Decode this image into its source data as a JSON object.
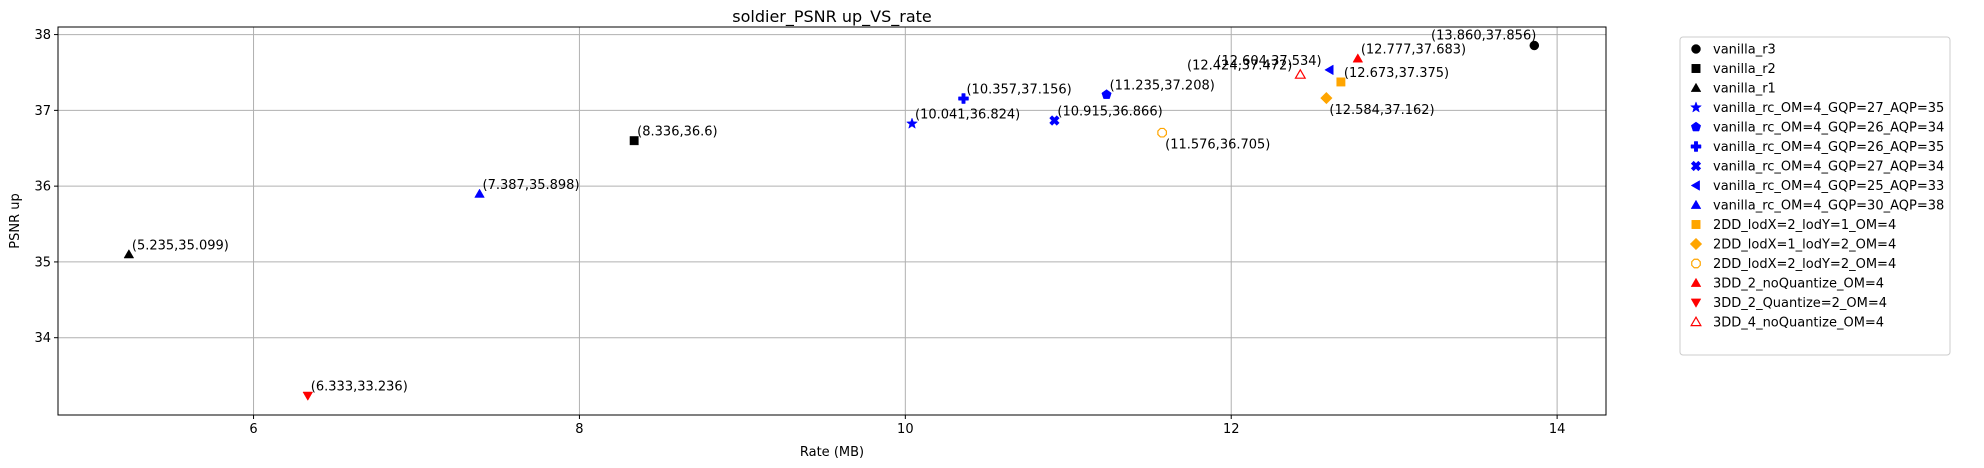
{
  "chart_data": {
    "type": "scatter",
    "title": "soldier_PSNR up_VS_rate",
    "xlabel": "Rate (MB)",
    "ylabel": "PSNR up",
    "xlim": [
      4.8,
      14.3
    ],
    "ylim": [
      32.98,
      38.1
    ],
    "xticks": [
      6,
      8,
      10,
      12,
      14
    ],
    "yticks": [
      34,
      35,
      36,
      37,
      38
    ],
    "grid": true,
    "legend_position": "outside right",
    "series": [
      {
        "name": "vanilla_r3",
        "marker": "circle",
        "color": "#000000",
        "filled": true,
        "points": [
          {
            "x": 13.86,
            "y": 37.856,
            "label": "(13.860,37.856)",
            "label_pos": "above-left"
          }
        ]
      },
      {
        "name": "vanilla_r2",
        "marker": "square",
        "color": "#000000",
        "filled": true,
        "points": [
          {
            "x": 8.336,
            "y": 36.6,
            "label": "(8.336,36.6)",
            "label_pos": "right"
          }
        ]
      },
      {
        "name": "vanilla_r1",
        "marker": "triangle-up",
        "color": "#000000",
        "filled": true,
        "points": [
          {
            "x": 5.235,
            "y": 35.099,
            "label": "(5.235,35.099)",
            "label_pos": "right"
          }
        ]
      },
      {
        "name": "vanilla_rc_OM=4_GQP=27_AQP=35",
        "marker": "star",
        "color": "#0000ff",
        "filled": true,
        "points": [
          {
            "x": 10.041,
            "y": 36.824,
            "label": "(10.041,36.824)",
            "label_pos": "right"
          }
        ]
      },
      {
        "name": "vanilla_rc_OM=4_GQP=26_AQP=34",
        "marker": "pentagon",
        "color": "#0000ff",
        "filled": true,
        "points": [
          {
            "x": 11.235,
            "y": 37.208,
            "label": "(11.235,37.208)",
            "label_pos": "right"
          }
        ]
      },
      {
        "name": "vanilla_rc_OM=4_GQP=26_AQP=35",
        "marker": "plus",
        "color": "#0000ff",
        "filled": true,
        "points": [
          {
            "x": 10.357,
            "y": 37.156,
            "label": "(10.357,37.156)",
            "label_pos": "right"
          }
        ]
      },
      {
        "name": "vanilla_rc_OM=4_GQP=27_AQP=34",
        "marker": "x",
        "color": "#0000ff",
        "filled": true,
        "points": [
          {
            "x": 10.915,
            "y": 36.866,
            "label": "(10.915,36.866)",
            "label_pos": "right"
          }
        ]
      },
      {
        "name": "vanilla_rc_OM=4_GQP=25_AQP=33",
        "marker": "triangle-left",
        "color": "#0000ff",
        "filled": true,
        "points": [
          {
            "x": 12.604,
            "y": 37.534,
            "label": "(12.604,37.534)",
            "label_pos": "left"
          }
        ]
      },
      {
        "name": "vanilla_rc_OM=4_GQP=30_AQP=38",
        "marker": "triangle-up",
        "color": "#0000ff",
        "filled": true,
        "points": [
          {
            "x": 7.387,
            "y": 35.898,
            "label": "(7.387,35.898)",
            "label_pos": "right"
          }
        ]
      },
      {
        "name": "2DD_lodX=2_lodY=1_OM=4",
        "marker": "square",
        "color": "#ffa500",
        "filled": true,
        "points": [
          {
            "x": 12.673,
            "y": 37.375,
            "label": "(12.673,37.375)",
            "label_pos": "right"
          }
        ]
      },
      {
        "name": "2DD_lodX=1_lodY=2_OM=4",
        "marker": "diamond",
        "color": "#ffa500",
        "filled": true,
        "points": [
          {
            "x": 12.584,
            "y": 37.162,
            "label": "(12.584,37.162)",
            "label_pos": "below-right"
          }
        ]
      },
      {
        "name": "2DD_lodX=2_lodY=2_OM=4",
        "marker": "octagon",
        "color": "#ffa500",
        "filled": false,
        "points": [
          {
            "x": 11.576,
            "y": 36.705,
            "label": "(11.576,36.705)",
            "label_pos": "below-right"
          }
        ]
      },
      {
        "name": "3DD_2_noQuantize_OM=4",
        "marker": "triangle-up",
        "color": "#ff0000",
        "filled": true,
        "points": [
          {
            "x": 12.777,
            "y": 37.683,
            "label": "(12.777,37.683)",
            "label_pos": "right"
          }
        ]
      },
      {
        "name": "3DD_2_Quantize=2_OM=4",
        "marker": "triangle-down",
        "color": "#ff0000",
        "filled": true,
        "points": [
          {
            "x": 6.333,
            "y": 33.236,
            "label": "(6.333,33.236)",
            "label_pos": "right"
          }
        ]
      },
      {
        "name": "3DD_4_noQuantize_OM=4",
        "marker": "triangle-up",
        "color": "#ff0000",
        "filled": false,
        "points": [
          {
            "x": 12.424,
            "y": 37.472,
            "label": "(12.424,37.472)",
            "label_pos": "left"
          }
        ]
      }
    ]
  }
}
